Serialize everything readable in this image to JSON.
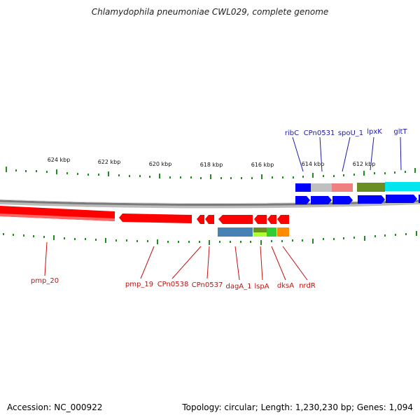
{
  "title": "Chlamydophila pneumoniae CWL029, complete genome",
  "footer": {
    "accession": "Accession: NC_000922",
    "summary": "Topology: circular; Length: 1,230,230 bp; Genes: 1,094"
  },
  "scale_labels": [
    "624 kbp",
    "622 kbp",
    "620 kbp",
    "618 kbp",
    "616 kbp",
    "614 kbp",
    "612 kbp"
  ],
  "genes_top": [
    "ribC",
    "CPn0531",
    "spoU_1",
    "lpxK",
    "gltT"
  ],
  "genes_bottom": [
    "pmp_20",
    "pmp_19",
    "CPn0538",
    "CPn0537",
    "dagA_1",
    "lspA",
    "dksA",
    "nrdR"
  ],
  "colors": {
    "forward_strand": "#0000ff",
    "reverse_strand": "#ff0000",
    "tick": "#228b22",
    "top_label": "#1a1aa8",
    "bottom_label": "#c41010",
    "backbone": "#808080"
  }
}
